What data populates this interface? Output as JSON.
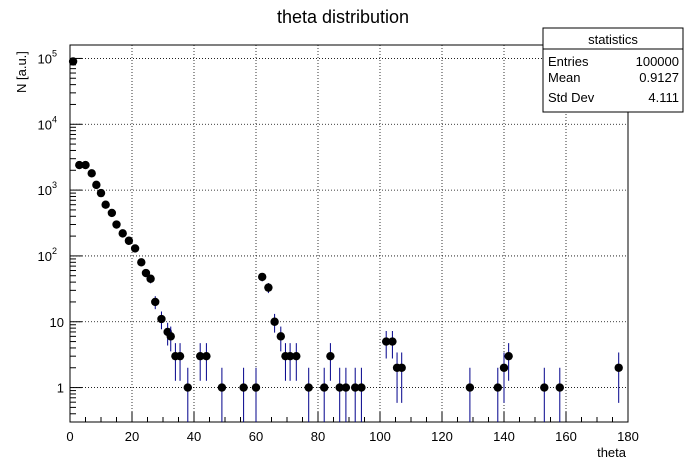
{
  "chart_data": {
    "type": "scatter",
    "title": "theta distribution",
    "xlabel": "theta",
    "ylabel": "N [a.u.]",
    "xlim": [
      0,
      180
    ],
    "ylim": [
      0.3,
      160000
    ],
    "log_y": true,
    "grid": true,
    "x_ticks": [
      0,
      20,
      40,
      60,
      80,
      100,
      120,
      140,
      160,
      180
    ],
    "y_ticks": [
      {
        "value": 1,
        "base": "1",
        "exp": ""
      },
      {
        "value": 10,
        "base": "10",
        "exp": ""
      },
      {
        "value": 100,
        "base": "10",
        "exp": "2"
      },
      {
        "value": 1000,
        "base": "10",
        "exp": "3"
      },
      {
        "value": 10000,
        "base": "10",
        "exp": "4"
      },
      {
        "value": 100000,
        "base": "10",
        "exp": "5"
      }
    ],
    "series": [
      {
        "points": [
          [
            1,
            90000
          ],
          [
            3,
            2400
          ],
          [
            5,
            2400
          ],
          [
            7,
            1800
          ],
          [
            8.5,
            1200
          ],
          [
            10,
            900
          ],
          [
            11.5,
            600
          ],
          [
            13.5,
            450
          ],
          [
            15,
            300
          ],
          [
            17,
            220
          ],
          [
            19,
            170
          ],
          [
            21,
            130
          ],
          [
            23,
            80
          ],
          [
            24.5,
            55
          ],
          [
            26,
            45
          ],
          [
            27.5,
            20
          ],
          [
            29.5,
            11
          ],
          [
            31.5,
            7
          ],
          [
            32.5,
            6
          ],
          [
            34,
            3
          ],
          [
            35.5,
            3
          ],
          [
            38,
            1
          ],
          [
            42,
            3
          ],
          [
            44,
            3
          ],
          [
            49,
            1
          ],
          [
            56,
            1
          ],
          [
            60,
            1
          ],
          [
            62,
            48
          ],
          [
            64,
            33
          ],
          [
            66,
            10
          ],
          [
            68,
            6
          ],
          [
            69.5,
            3
          ],
          [
            71,
            3
          ],
          [
            73,
            3
          ],
          [
            77,
            1
          ],
          [
            82,
            1
          ],
          [
            84,
            3
          ],
          [
            87,
            1
          ],
          [
            89,
            1
          ],
          [
            92,
            1
          ],
          [
            94,
            1
          ],
          [
            102,
            5
          ],
          [
            104,
            5
          ],
          [
            105.5,
            2
          ],
          [
            107,
            2
          ],
          [
            129,
            1
          ],
          [
            138,
            1
          ],
          [
            140,
            2
          ],
          [
            141.5,
            3
          ],
          [
            153,
            1
          ],
          [
            158,
            1
          ],
          [
            177,
            2
          ]
        ]
      }
    ]
  },
  "stats": {
    "title": "statistics",
    "rows": [
      {
        "label": "Entries",
        "value": "100000"
      },
      {
        "label": "Mean",
        "value": "0.9127"
      },
      {
        "label": "Std Dev",
        "value": "4.111"
      }
    ]
  }
}
